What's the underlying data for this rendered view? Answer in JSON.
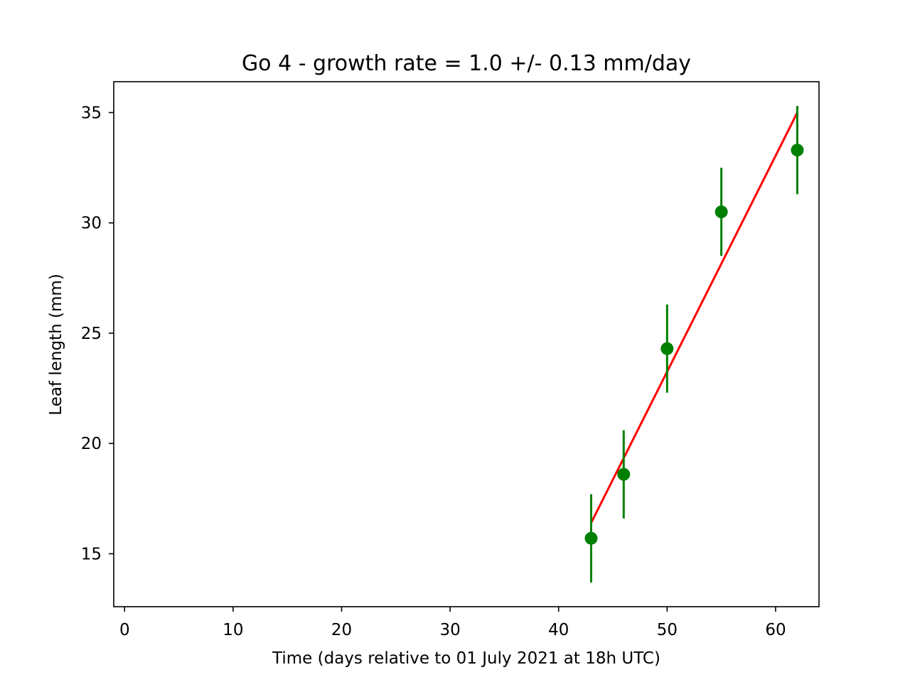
{
  "chart_data": {
    "type": "scatter",
    "title": "Go 4  -  growth rate =  1.0 +/- 0.13 mm/day",
    "xlabel": "Time (days relative to 01 July 2021 at 18h UTC)",
    "ylabel": "Leaf length (mm)",
    "xlim": [
      -1,
      64
    ],
    "ylim": [
      12.6,
      36.4
    ],
    "xticks": [
      0,
      10,
      20,
      30,
      40,
      50,
      60
    ],
    "yticks": [
      15,
      20,
      25,
      30,
      35
    ],
    "grid": false,
    "series": [
      {
        "kind": "errorbar",
        "color": "#008000",
        "points": [
          {
            "x": 43,
            "y": 15.7,
            "err": 2.0
          },
          {
            "x": 46,
            "y": 18.6,
            "err": 2.0
          },
          {
            "x": 50,
            "y": 24.3,
            "err": 2.0
          },
          {
            "x": 55,
            "y": 30.5,
            "err": 2.0
          },
          {
            "x": 62,
            "y": 33.3,
            "err": 2.0
          }
        ]
      },
      {
        "kind": "line",
        "color": "#ff0000",
        "x": [
          43,
          62
        ],
        "y": [
          16.4,
          35.0
        ]
      }
    ]
  }
}
